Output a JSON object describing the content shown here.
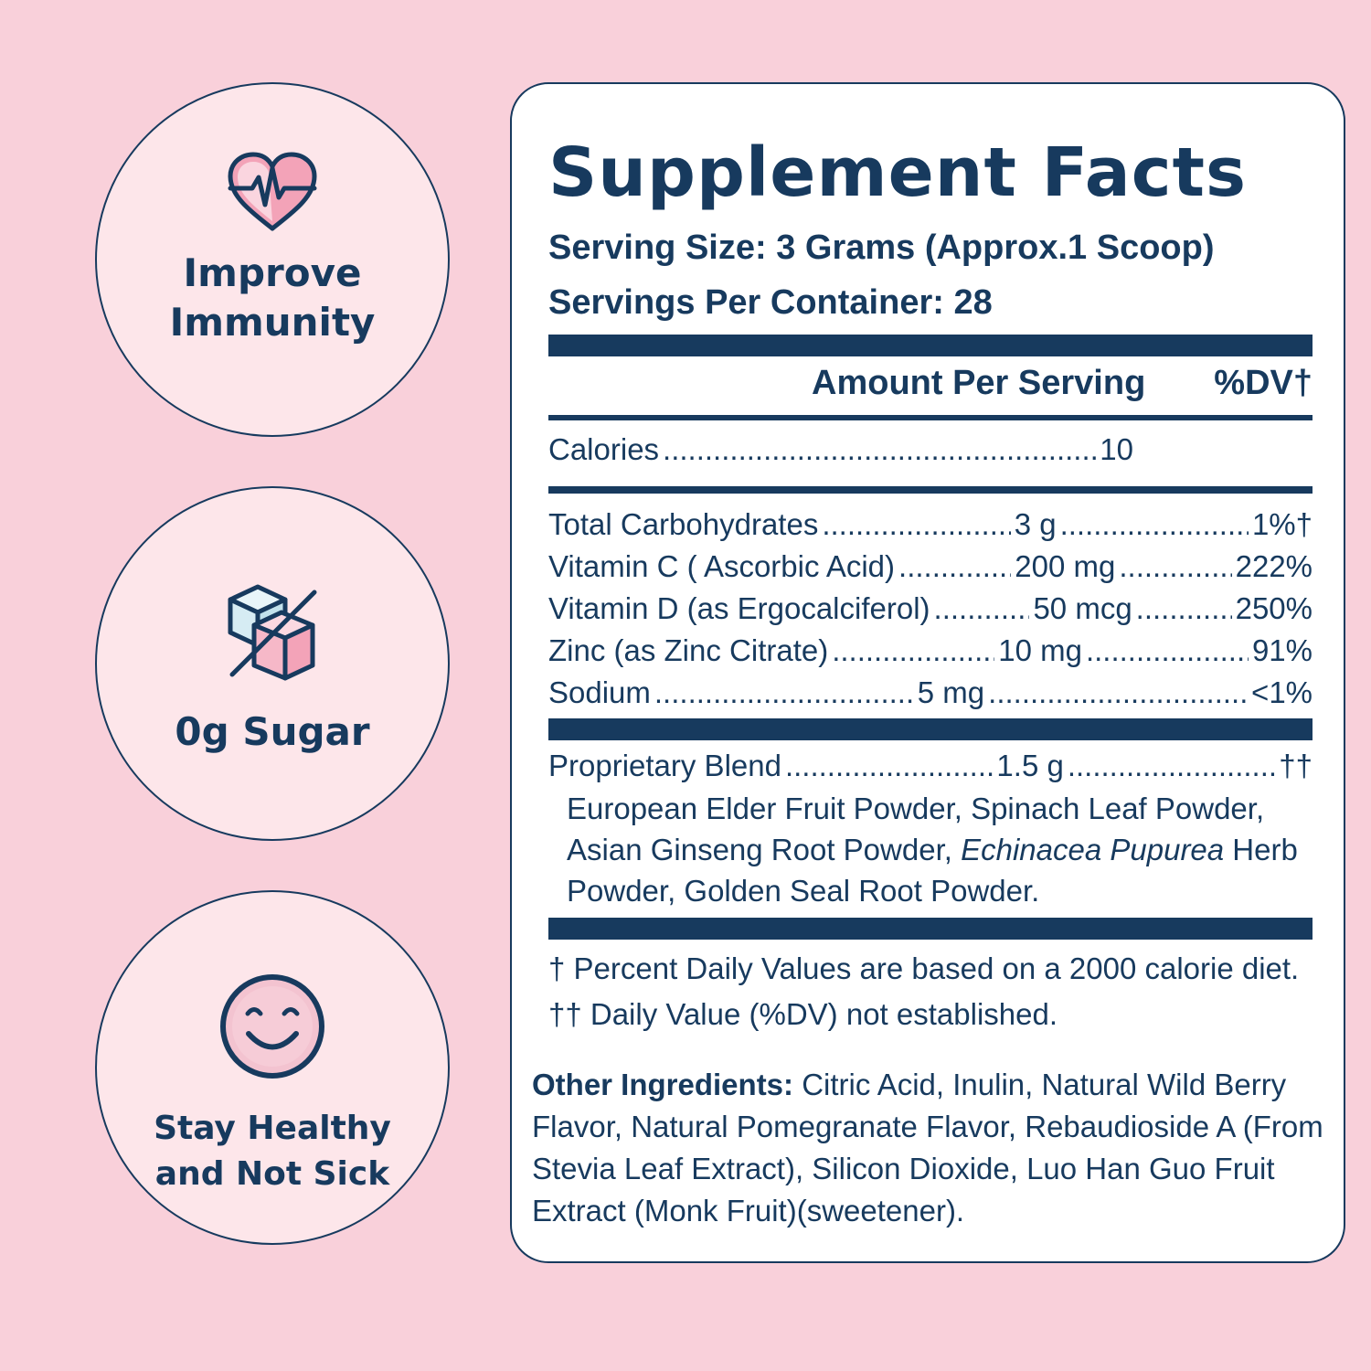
{
  "badges": [
    {
      "icon": "heart-pulse-icon",
      "label": "Improve\nImmunity"
    },
    {
      "icon": "sugar-cube-crossed-icon",
      "label": "0g Sugar"
    },
    {
      "icon": "smiley-face-icon",
      "label": "Stay Healthy\nand Not Sick"
    }
  ],
  "facts": {
    "title": "Supplement Facts",
    "serving_size": "Serving Size: 3 Grams (Approx.1 Scoop)",
    "servings_per_container": "Servings Per Container: 28",
    "header_amount": "Amount Per Serving",
    "header_dv": "%DV†",
    "calories": {
      "name": "Calories",
      "amount": "10"
    },
    "nutrients": [
      {
        "name": "Total Carbohydrates",
        "amount": "3 g",
        "dv": "1%†"
      },
      {
        "name": "Vitamin C ( Ascorbic Acid)",
        "amount": "200 mg",
        "dv": "222%"
      },
      {
        "name": "Vitamin D (as Ergocalciferol)",
        "amount": "50 mcg",
        "dv": "250%"
      },
      {
        "name": "Zinc (as Zinc Citrate)",
        "amount": "10 mg",
        "dv": "91%"
      },
      {
        "name": "Sodium",
        "amount": "5 mg",
        "dv": "<1%"
      }
    ],
    "blend": {
      "name": "Proprietary Blend",
      "amount": "1.5 g",
      "dv": "††"
    },
    "blend_ingredients": {
      "part1": "European Elder Fruit Powder, Spinach Leaf Powder, Asian Ginseng Root Powder, ",
      "italic": "Echinacea Pupurea",
      "part2": " Herb Powder, Golden Seal Root Powder."
    },
    "footnote1": "† Percent Daily Values are based on a 2000 calorie diet.",
    "footnote2": "†† Daily Value (%DV) not established."
  },
  "other_ingredients": {
    "label": "Other Ingredients:",
    "text": " Citric Acid, Inulin, Natural Wild Berry Flavor, Natural Pomegranate Flavor, Rebaudioside A (From Stevia Leaf Extract), Silicon Dioxide,  Luo Han Guo Fruit Extract (Monk Fruit)(sweetener)."
  },
  "colors": {
    "background": "#f9d0da",
    "navy": "#173a5e",
    "badge_fill": "#fde6ea",
    "heart_pink": "#f3a3b8",
    "cube_blue": "#d6ecf3",
    "cube_pink": "#f6b8c8"
  }
}
